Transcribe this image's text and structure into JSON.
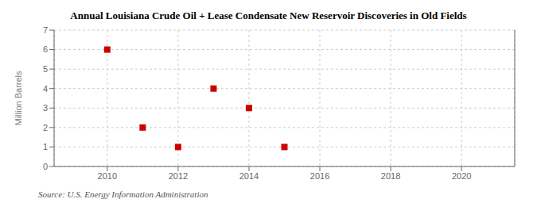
{
  "chart_data": {
    "type": "scatter",
    "title": "Annual Louisiana Crude Oil + Lease Condensate New Reservoir Discoveries in Old Fields",
    "ylabel": "Million Barrels",
    "annotations": [
      "Source: U.S. Energy Information Administration"
    ],
    "x": [
      2010,
      2011,
      2012,
      2013,
      2014,
      2015
    ],
    "values": [
      6,
      2,
      1,
      4,
      3,
      1
    ],
    "color": "#cc0000",
    "marker": "square",
    "xlim": [
      2008.5,
      2021.5
    ],
    "xticks": [
      2010,
      2012,
      2014,
      2016,
      2018,
      2020
    ],
    "ylim": [
      0,
      7
    ],
    "yticks": [
      0,
      1,
      2,
      3,
      4,
      5,
      6,
      7
    ],
    "grid": true
  }
}
